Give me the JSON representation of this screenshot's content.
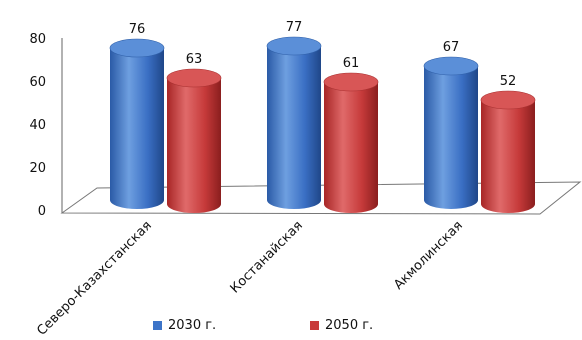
{
  "chart_data": {
    "type": "bar",
    "categories": [
      "Северо-Казахстанская",
      "Костанайская",
      "Акмолинская"
    ],
    "series": [
      {
        "name": "2030 г.",
        "values": [
          76,
          77,
          67
        ],
        "color": "#3c74c8"
      },
      {
        "name": "2050 г.",
        "values": [
          63,
          61,
          52
        ],
        "color": "#c83b3b"
      }
    ],
    "ylim": [
      0,
      80
    ],
    "yticks": [
      "0",
      "20",
      "40",
      "60",
      "80"
    ],
    "legend_position": "bottom",
    "grid": false,
    "style": "3d-cylinder"
  }
}
